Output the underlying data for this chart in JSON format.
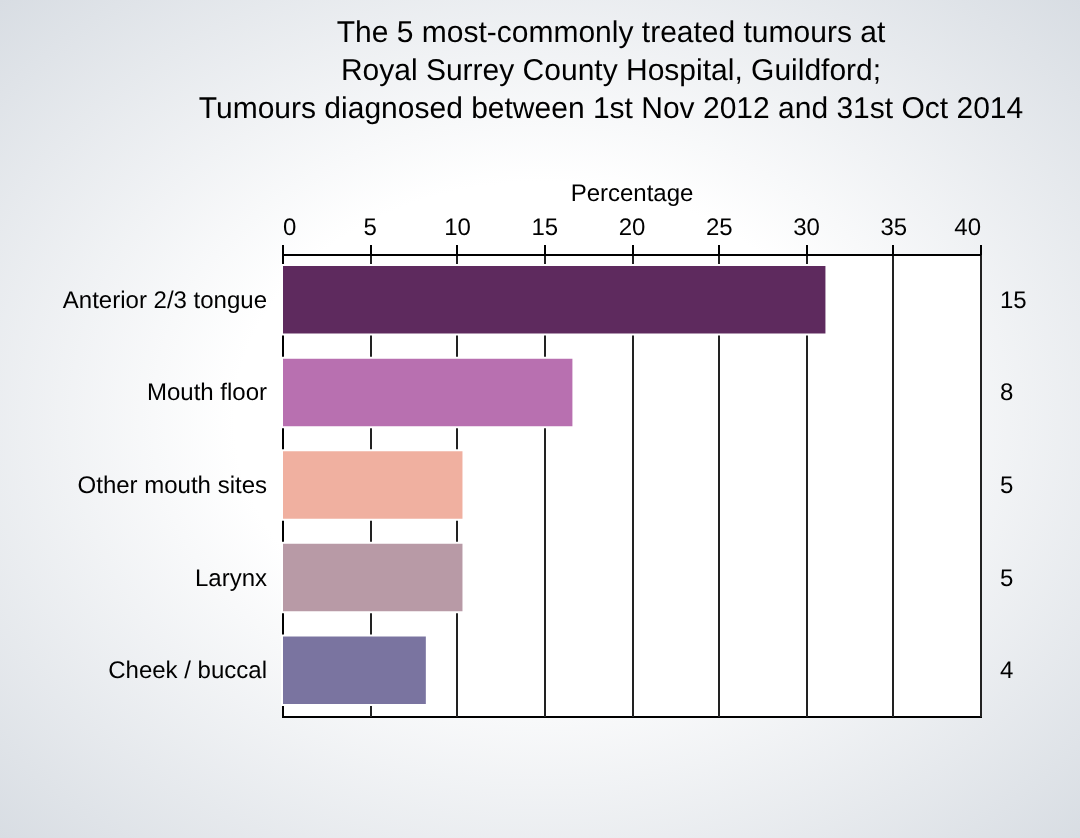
{
  "chart_data": {
    "type": "bar",
    "orientation": "horizontal",
    "title": "The 5 most-commonly treated tumours at\nRoyal Surrey County Hospital, Guildford;\nTumours diagnosed between 1st Nov 2012 and 31st Oct 2014",
    "xlabel": "Percentage",
    "categories": [
      "Anterior 2/3 tongue",
      "Mouth floor",
      "Other mouth sites",
      "Larynx",
      "Cheek / buccal"
    ],
    "values": [
      31.2,
      16.7,
      10.4,
      10.4,
      8.3
    ],
    "colors": [
      "#5e2a5e",
      "#b870b0",
      "#f0b0a0",
      "#b89aa6",
      "#7a74a0"
    ],
    "annotations": [
      "15",
      "8",
      "5",
      "5",
      "4"
    ],
    "xlim": [
      0,
      40
    ],
    "xticks": [
      0,
      5,
      10,
      15,
      20,
      25,
      30,
      35,
      40
    ],
    "grid": "x"
  }
}
